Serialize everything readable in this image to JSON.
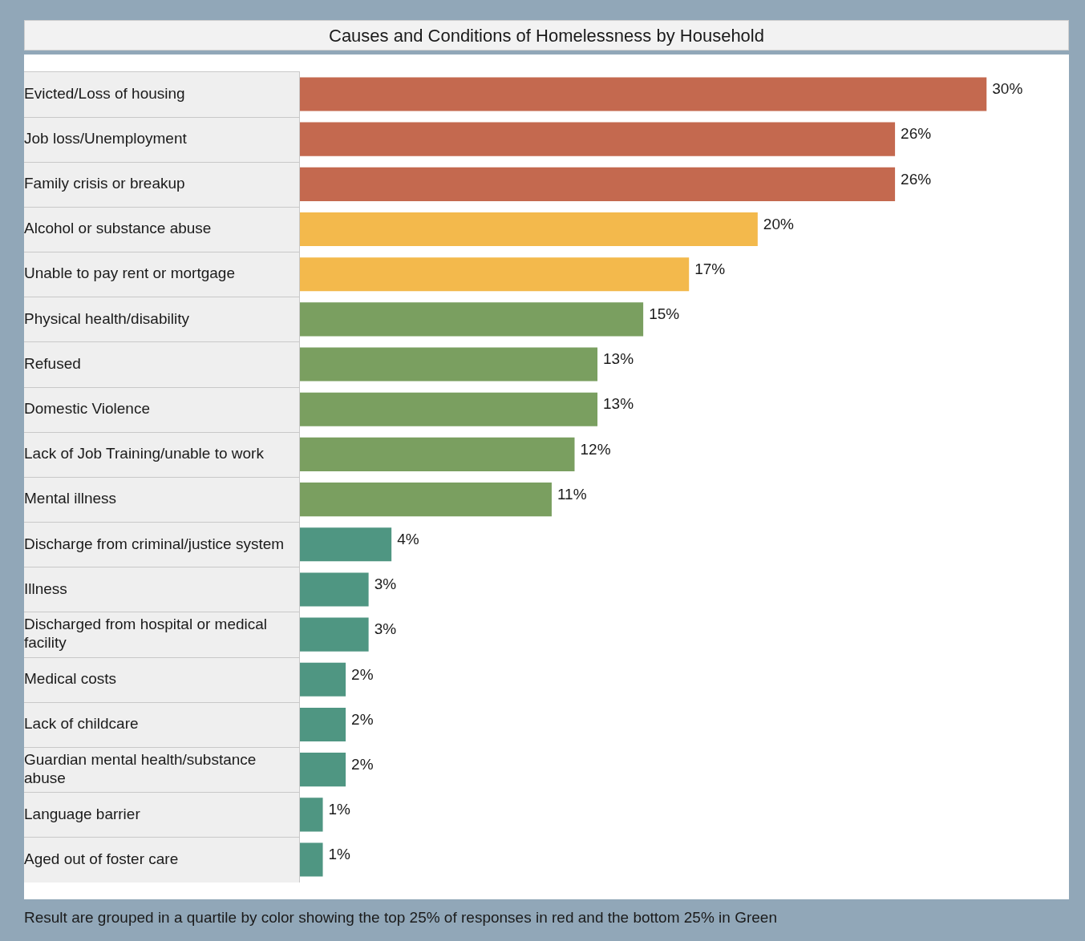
{
  "chart_data": {
    "type": "bar",
    "orientation": "horizontal",
    "title": "Causes and Conditions of Homelessness by Household",
    "categories": [
      "Evicted/Loss of housing",
      "Job loss/Unemployment",
      "Family crisis or breakup",
      "Alcohol or substance abuse",
      "Unable to pay rent or mortgage",
      "Physical health/disability",
      "Refused",
      "Domestic Violence",
      "Lack of Job Training/unable to work",
      "Mental illness",
      "Discharge from criminal/justice system",
      "Illness",
      "Discharged from hospital or medical facility",
      "Medical costs",
      "Lack of childcare",
      "Guardian mental health/substance abuse",
      "Language barrier",
      "Aged out of foster care"
    ],
    "values": [
      30,
      26,
      26,
      20,
      17,
      15,
      13,
      13,
      12,
      11,
      4,
      3,
      3,
      2,
      2,
      2,
      1,
      1
    ],
    "value_labels": [
      "30%",
      "26%",
      "26%",
      "20%",
      "17%",
      "15%",
      "13%",
      "13%",
      "12%",
      "11%",
      "4%",
      "3%",
      "3%",
      "2%",
      "2%",
      "2%",
      "1%",
      "1%"
    ],
    "colors": [
      "#c4694f",
      "#c4694f",
      "#c4694f",
      "#f3b94c",
      "#f3b94c",
      "#7a9f60",
      "#7a9f60",
      "#7a9f60",
      "#7a9f60",
      "#7a9f60",
      "#4f9682",
      "#4f9682",
      "#4f9682",
      "#4f9682",
      "#4f9682",
      "#4f9682",
      "#4f9682",
      "#4f9682"
    ],
    "xlim": [
      0,
      33.6
    ],
    "legend": false,
    "annotations": [
      "Result are grouped in a quartile by color showing the top 25% of responses in red and the bottom 25% in Green"
    ]
  }
}
